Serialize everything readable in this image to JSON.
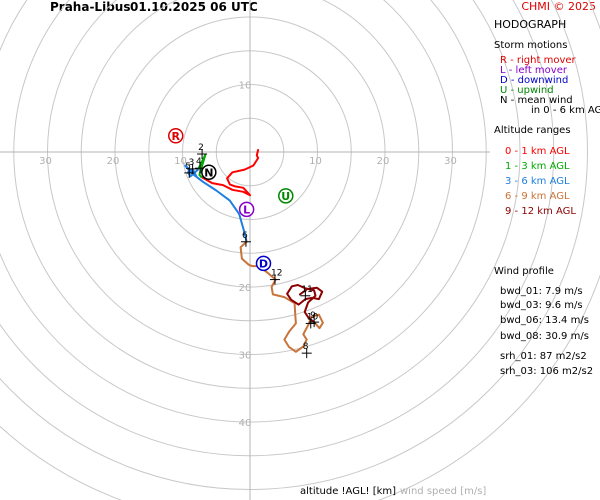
{
  "header": {
    "station": "Praha-Libus",
    "datetime": "01.10.2025 06 UTC",
    "copyright": "CHMI © 2025"
  },
  "panel": {
    "title": "HODOGRAPH",
    "storm_title": "Storm motions",
    "storm_items": [
      {
        "text": "R - right mover",
        "color": "#dd0000"
      },
      {
        "text": "L - left mover",
        "color": "#8800cc"
      },
      {
        "text": "D - downwind",
        "color": "#0000cc"
      },
      {
        "text": "U - upwind",
        "color": "#008800"
      },
      {
        "text": "N - mean wind",
        "color": "#000000"
      },
      {
        "text": "in 0 - 6 km AGL",
        "color": "#000000"
      }
    ],
    "alt_title": "Altitude ranges",
    "alt_items": [
      {
        "text": "0 - 1 km AGL",
        "color": "#ff0000"
      },
      {
        "text": "1 - 3 km AGL",
        "color": "#00aa00"
      },
      {
        "text": "3 - 6 km AGL",
        "color": "#1e7fe0"
      },
      {
        "text": "6 - 9 km AGL",
        "color": "#c8743a"
      },
      {
        "text": "9 - 12 km AGL",
        "color": "#8b0000"
      }
    ],
    "profile_title": "Wind profile",
    "profile_items": [
      "bwd_01: 7.9 m/s",
      "bwd_03: 9.6 m/s",
      "bwd_06: 13.4 m/s",
      "bwd_08: 30.9 m/s",
      "srh_01: 87 m2/s2",
      "srh_03: 106 m2/s2"
    ]
  },
  "footer": {
    "altitude_label": "altitude !AGL! [km]",
    "windspeed_label": "wind speed [m/s]"
  },
  "chart_data": {
    "type": "hodograph",
    "ring_spacing_ms": 5,
    "ring_labels": [
      {
        "value": "10",
        "axis": "up"
      },
      {
        "value": "10",
        "axis": "right"
      },
      {
        "value": "20",
        "axis": "right"
      },
      {
        "value": "30",
        "axis": "right"
      },
      {
        "value": "10",
        "axis": "left"
      },
      {
        "value": "20",
        "axis": "left"
      },
      {
        "value": "30",
        "axis": "left"
      },
      {
        "value": "20",
        "axis": "down"
      },
      {
        "value": "30",
        "axis": "down"
      },
      {
        "value": "40",
        "axis": "down"
      }
    ],
    "segments": [
      {
        "range": "0 - 1 km AGL",
        "color": "#ff0000",
        "points": [
          [
            1.2,
            -0.3
          ],
          [
            1.0,
            0.5
          ],
          [
            1.2,
            0.9
          ],
          [
            0.5,
            2.0
          ],
          [
            -0.8,
            2.6
          ],
          [
            -2.6,
            3.0
          ],
          [
            -3.4,
            3.9
          ],
          [
            -3.0,
            4.8
          ],
          [
            -2.2,
            5.1
          ],
          [
            -1.0,
            5.3
          ],
          [
            0.0,
            6.4
          ],
          [
            -1.0,
            5.9
          ],
          [
            -2.6,
            5.6
          ],
          [
            -4.0,
            4.9
          ],
          [
            -5.6,
            4.6
          ],
          [
            -7.2,
            3.7
          ]
        ]
      },
      {
        "range": "1 - 3 km AGL",
        "color": "#00aa00",
        "points": [
          [
            -7.2,
            3.7
          ],
          [
            -7.5,
            3.4
          ],
          [
            -6.6,
            0.4
          ],
          [
            -7.7,
            2.6
          ]
        ]
      },
      {
        "range": "3 - 6 km AGL",
        "color": "#1e7fe0",
        "points": [
          [
            -7.7,
            2.6
          ],
          [
            -8.8,
            3.6
          ],
          [
            -9.2,
            3.0
          ],
          [
            -8.5,
            2.5
          ],
          [
            -8.0,
            3.5
          ],
          [
            -9.6,
            2.0
          ],
          [
            -8.8,
            3.0
          ],
          [
            -7.0,
            4.4
          ],
          [
            -5.0,
            5.7
          ],
          [
            -3.0,
            7.2
          ],
          [
            -1.6,
            9.2
          ],
          [
            -0.8,
            12.0
          ],
          [
            -0.5,
            13.3
          ]
        ]
      },
      {
        "range": "6 - 9 km AGL",
        "color": "#c8743a",
        "points": [
          [
            -0.5,
            13.3
          ],
          [
            -1.4,
            14.1
          ],
          [
            -1.2,
            15.8
          ],
          [
            -0.2,
            16.7
          ],
          [
            0.3,
            16.9
          ],
          [
            1.3,
            16.9
          ],
          [
            2.6,
            17.9
          ],
          [
            3.8,
            18.9
          ],
          [
            3.2,
            20.0
          ],
          [
            3.4,
            21.1
          ],
          [
            5.1,
            21.5
          ],
          [
            6.6,
            22.4
          ],
          [
            6.7,
            24.0
          ],
          [
            6.8,
            25.4
          ],
          [
            5.8,
            26.6
          ],
          [
            5.1,
            27.8
          ],
          [
            5.8,
            28.9
          ],
          [
            6.8,
            29.6
          ],
          [
            7.9,
            28.8
          ],
          [
            8.4,
            27.8
          ],
          [
            7.9,
            27.0
          ],
          [
            8.7,
            25.5
          ],
          [
            9.1,
            24.4
          ],
          [
            10.2,
            24.1
          ],
          [
            10.8,
            25.3
          ],
          [
            10.3,
            26.1
          ],
          [
            9.5,
            25.2
          ]
        ]
      },
      {
        "range": "9 - 12 km AGL",
        "color": "#8b0000",
        "points": [
          [
            9.5,
            25.2
          ],
          [
            8.7,
            24.6
          ],
          [
            8.1,
            23.7
          ],
          [
            8.6,
            22.3
          ],
          [
            9.7,
            21.3
          ],
          [
            9.5,
            20.5
          ],
          [
            8.2,
            20.2
          ],
          [
            7.1,
            19.7
          ],
          [
            6.2,
            19.9
          ],
          [
            5.5,
            21.0
          ],
          [
            6.1,
            21.9
          ],
          [
            7.2,
            22.6
          ],
          [
            8.2,
            21.8
          ],
          [
            9.2,
            21.6
          ],
          [
            10.2,
            21.8
          ],
          [
            10.7,
            20.7
          ],
          [
            9.9,
            20.1
          ],
          [
            8.5,
            20.3
          ],
          [
            7.4,
            21.1
          ]
        ]
      }
    ],
    "height_marks": [
      {
        "label": "2",
        "u": -7.1,
        "v": 0.3
      },
      {
        "label": "4",
        "u": -7.4,
        "v": 2.4
      },
      {
        "label": "3",
        "u": -8.5,
        "v": 2.5
      },
      {
        "label": "5",
        "u": -9.0,
        "v": 3.1
      },
      {
        "label": "6",
        "u": -0.6,
        "v": 13.3
      },
      {
        "label": "12",
        "u": 3.7,
        "v": 18.9
      },
      {
        "label": "11",
        "u": 8.2,
        "v": 21.3
      },
      {
        "label": "10",
        "u": 9.0,
        "v": 25.4
      },
      {
        "label": "9",
        "u": 9.5,
        "v": 25.2
      },
      {
        "label": "8",
        "u": 8.4,
        "v": 29.8
      }
    ],
    "storm_markers": [
      {
        "label": "R",
        "u": -11.0,
        "v": -2.4,
        "color": "#dd0000"
      },
      {
        "label": "N",
        "u": -6.1,
        "v": 3.0,
        "color": "#000000"
      },
      {
        "label": "L",
        "u": -0.5,
        "v": 8.5,
        "color": "#8800cc"
      },
      {
        "label": "U",
        "u": 5.3,
        "v": 6.5,
        "color": "#008800"
      },
      {
        "label": "D",
        "u": 2.0,
        "v": 16.5,
        "color": "#0000cc"
      }
    ]
  }
}
